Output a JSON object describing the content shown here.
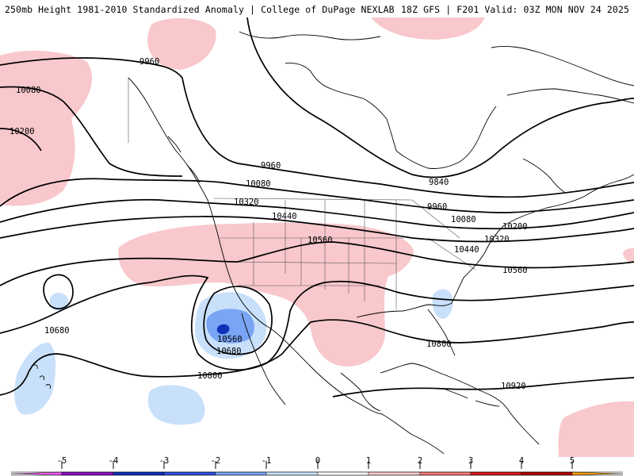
{
  "header": {
    "left_title": "250mb Height 1981-2010 Standardized Anomaly | College of DuPage NEXLAB",
    "right_title": "18Z GFS | F201 Valid: 03Z MON NOV 24 2025"
  },
  "contour_labels": [
    "9960",
    "10080",
    "10200",
    "9960",
    "10080",
    "9840",
    "10320",
    "10440",
    "10560",
    "9960",
    "10080",
    "10200",
    "10320",
    "10440",
    "10560",
    "10680",
    "10560",
    "10680",
    "10800",
    "10800",
    "10920"
  ],
  "colorbar": {
    "tick_labels": [
      "-5",
      "-4",
      "-3",
      "-2",
      "-1",
      "0",
      "1",
      "2",
      "3",
      "4",
      "5"
    ],
    "colors": [
      "#e85be8",
      "#8a10c0",
      "#1030b8",
      "#3050e0",
      "#7aa4f4",
      "#c8e0fa",
      "#ffffff",
      "#f8c8cc",
      "#f07878",
      "#d81818",
      "#b00000",
      "#f09a10",
      "#f6d020"
    ]
  },
  "anomaly_colors": {
    "minus_1": "#c8e0fa",
    "minus_2": "#7aa4f4",
    "minus_3": "#3050e0",
    "minus_4": "#1030b8",
    "plus_1": "#f8c8cc",
    "plus_2": "#f07878"
  }
}
